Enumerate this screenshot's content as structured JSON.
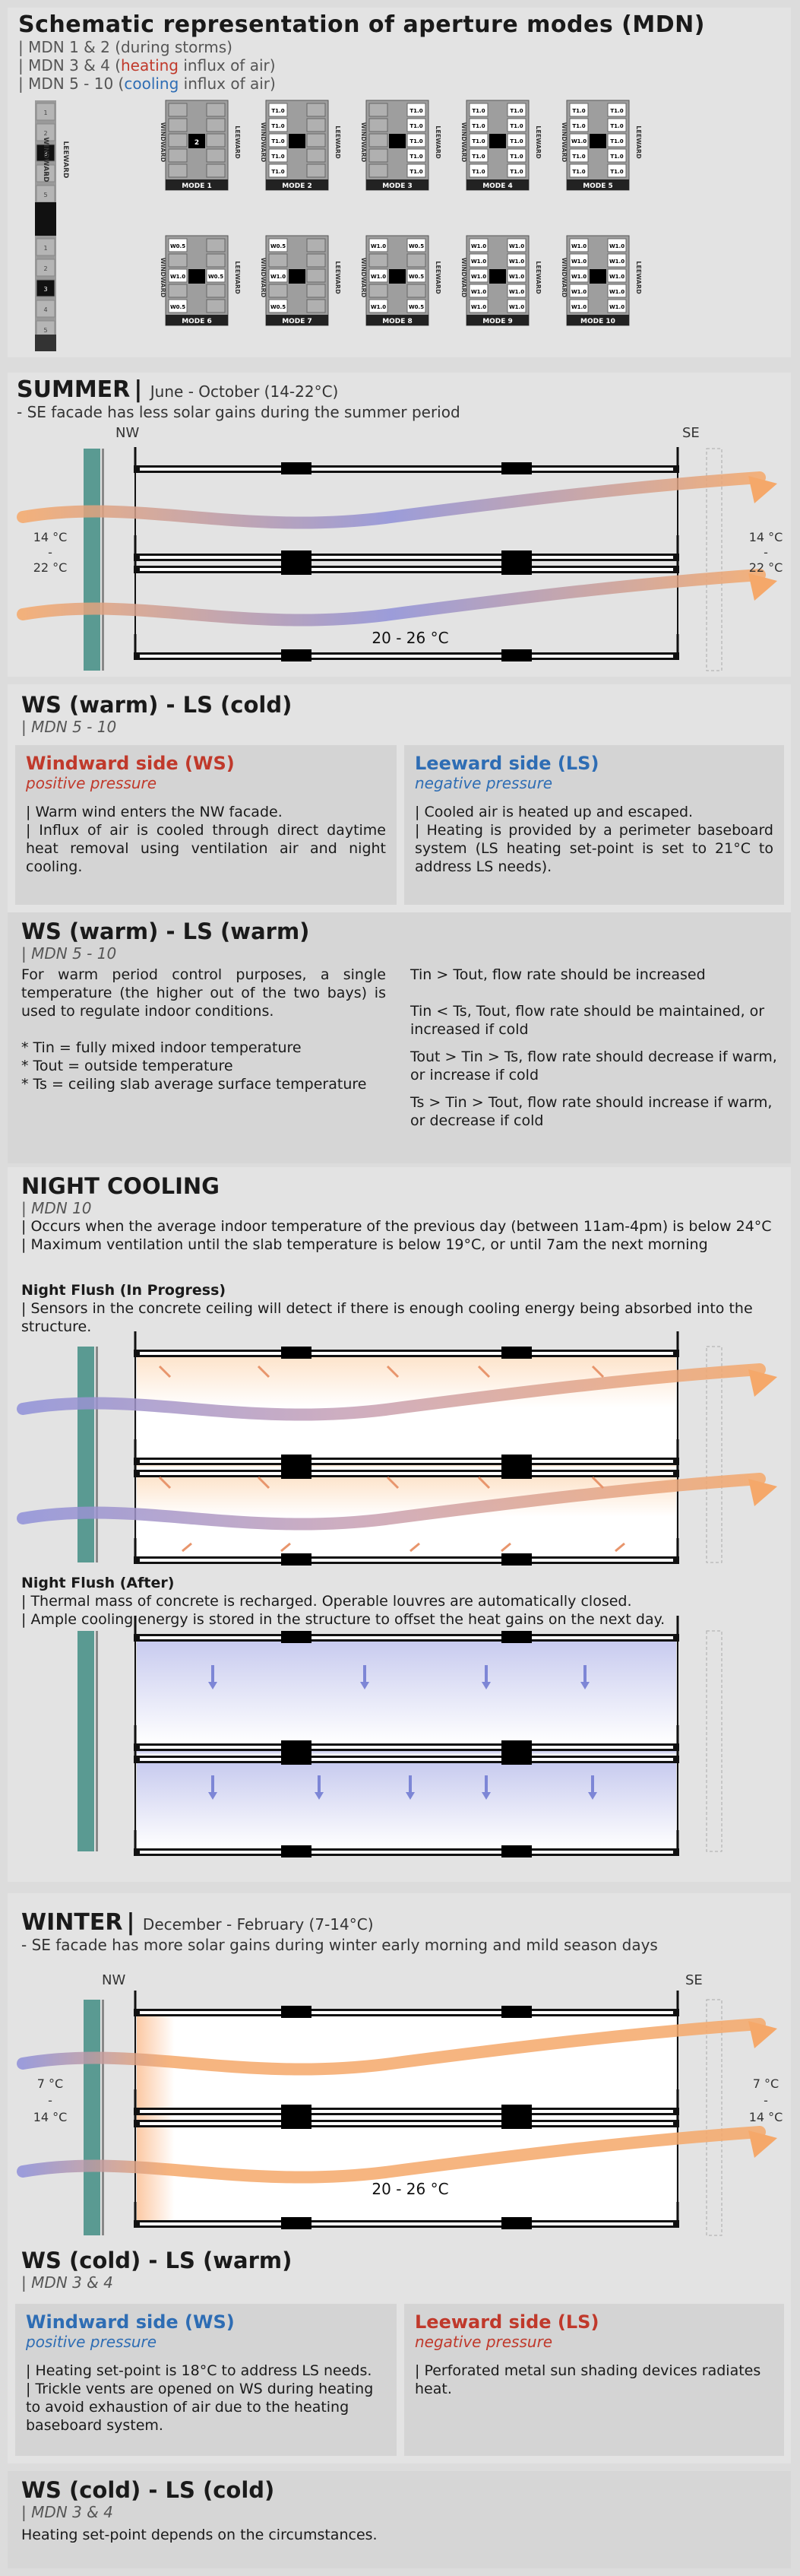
{
  "mdn": {
    "title": "Schematic representation of aperture modes (MDN)",
    "lines": [
      {
        "prefix": "| MDN 1 & 2 (during storms)",
        "colored": "",
        "suffix": ""
      },
      {
        "prefix": "| MDN 3 & 4 (",
        "colored": "heating",
        "suffix": " influx of air)",
        "color": "#c0392b"
      },
      {
        "prefix": "| MDN 5 - 10 (",
        "colored": "cooling",
        "suffix": " influx of air)",
        "color": "#2e6db4"
      }
    ],
    "side_labels": {
      "windward": "WINDWARD",
      "leeward": "LEEWARD"
    },
    "cells": {
      "t1": "T1.0",
      "w05": "W0.5",
      "w1": "W1.0"
    },
    "legend_nums": [
      "1",
      "2",
      "3",
      "4",
      "5"
    ],
    "modes_row1": [
      "MODE 1",
      "MODE 2",
      "MODE 3",
      "MODE 4",
      "MODE 5"
    ],
    "modes_row2": [
      "MODE 6",
      "MODE 7",
      "MODE 8",
      "MODE 9",
      "MODE 10"
    ]
  },
  "summer": {
    "title": "SUMMER",
    "period": "June - October (14-22°C)",
    "subtitle": "- SE facade has less solar gains during the summer period",
    "nw": "NW",
    "se": "SE",
    "left_temp": [
      "14 °C",
      "-",
      "22 °C"
    ],
    "right_temp": [
      "14 °C",
      "-",
      "22 °C"
    ],
    "inside_temp": "20 - 26 °C"
  },
  "ws_warm_ls_cold": {
    "title": "WS (warm) - LS (cold)",
    "mdn": "| MDN 5 - 10",
    "windward": {
      "title": "Windward side (WS)",
      "pressure": "positive pressure",
      "text": "| Warm wind enters the NW facade.\n| Influx of air is cooled through direct daytime heat removal using ventilation air and night cooling."
    },
    "leeward": {
      "title": "Leeward side (LS)",
      "pressure": "negative pressure",
      "text": "| Cooled air is heated up and escaped.\n| Heating is provided by a perimeter baseboard system (LS heating set-point is set to 21°C to address LS needs)."
    }
  },
  "ws_warm_ls_warm": {
    "title": "WS (warm) - LS (warm)",
    "mdn": "| MDN 5 - 10",
    "intro": "For warm period control purposes, a single temperature (the higher out of the two bays) is used to regulate indoor conditions.",
    "defs": [
      "* Tin = fully mixed indoor temperature",
      "* Tout = outside temperature",
      "* Ts = ceiling slab average surface temperature"
    ],
    "rules": [
      "Tin > Tout, flow rate should be increased",
      "Tin < Ts, Tout, flow rate should be maintained, or increased if cold",
      "Tout > Tin > Ts, flow rate should decrease if warm, or increase if cold",
      "Ts > Tin > Tout, flow rate should increase if warm, or decrease if cold"
    ]
  },
  "night": {
    "title": "NIGHT COOLING",
    "mdn": "| MDN 10",
    "lines": [
      "| Occurs when the average indoor temperature of the previous day (between 11am-4pm) is below 24°C",
      "| Maximum ventilation until the slab temperature is below 19°C, or until 7am the next morning"
    ],
    "progress_title": "Night Flush (In Progress)",
    "progress_text": "| Sensors in the concrete ceiling will detect if there is enough cooling energy being absorbed into the structure.",
    "after_title": "Night Flush (After)",
    "after_lines": [
      "| Thermal mass of concrete is recharged. Operable louvres are automatically closed.",
      "| Ample cooling energy is stored in the structure to offset the heat gains on the next day."
    ]
  },
  "winter": {
    "title": "WINTER",
    "period": "December - February (7-14°C)",
    "subtitle": "- SE facade has more solar gains during winter early morning and mild season days",
    "nw": "NW",
    "se": "SE",
    "left_temp": [
      "7 °C",
      "-",
      "14 °C"
    ],
    "right_temp": [
      "7 °C",
      "-",
      "14 °C"
    ],
    "inside_temp": "20 - 26 °C"
  },
  "ws_cold_ls_warm": {
    "title": "WS (cold) - LS (warm)",
    "mdn": "| MDN 3 & 4",
    "windward": {
      "title": "Windward side (WS)",
      "pressure": "positive pressure",
      "text": "| Heating set-point is 18°C to address LS needs.\n| Trickle vents are opened on WS during heating to avoid exhaustion of air due to the heating baseboard system."
    },
    "leeward": {
      "title": "Leeward side (LS)",
      "pressure": "negative pressure",
      "text": "| Perforated metal sun shading devices radiates heat."
    }
  },
  "ws_cold_ls_cold": {
    "title": "WS (cold) - LS (cold)",
    "mdn": "| MDN 3 & 4",
    "text": "Heating set-point depends on the circumstances."
  },
  "colors": {
    "warm": "#f5a86a",
    "cool": "#8f90d8",
    "windward_red": "#c0392b",
    "leeward_blue": "#2e6db4",
    "facade": "#5a9a92"
  }
}
